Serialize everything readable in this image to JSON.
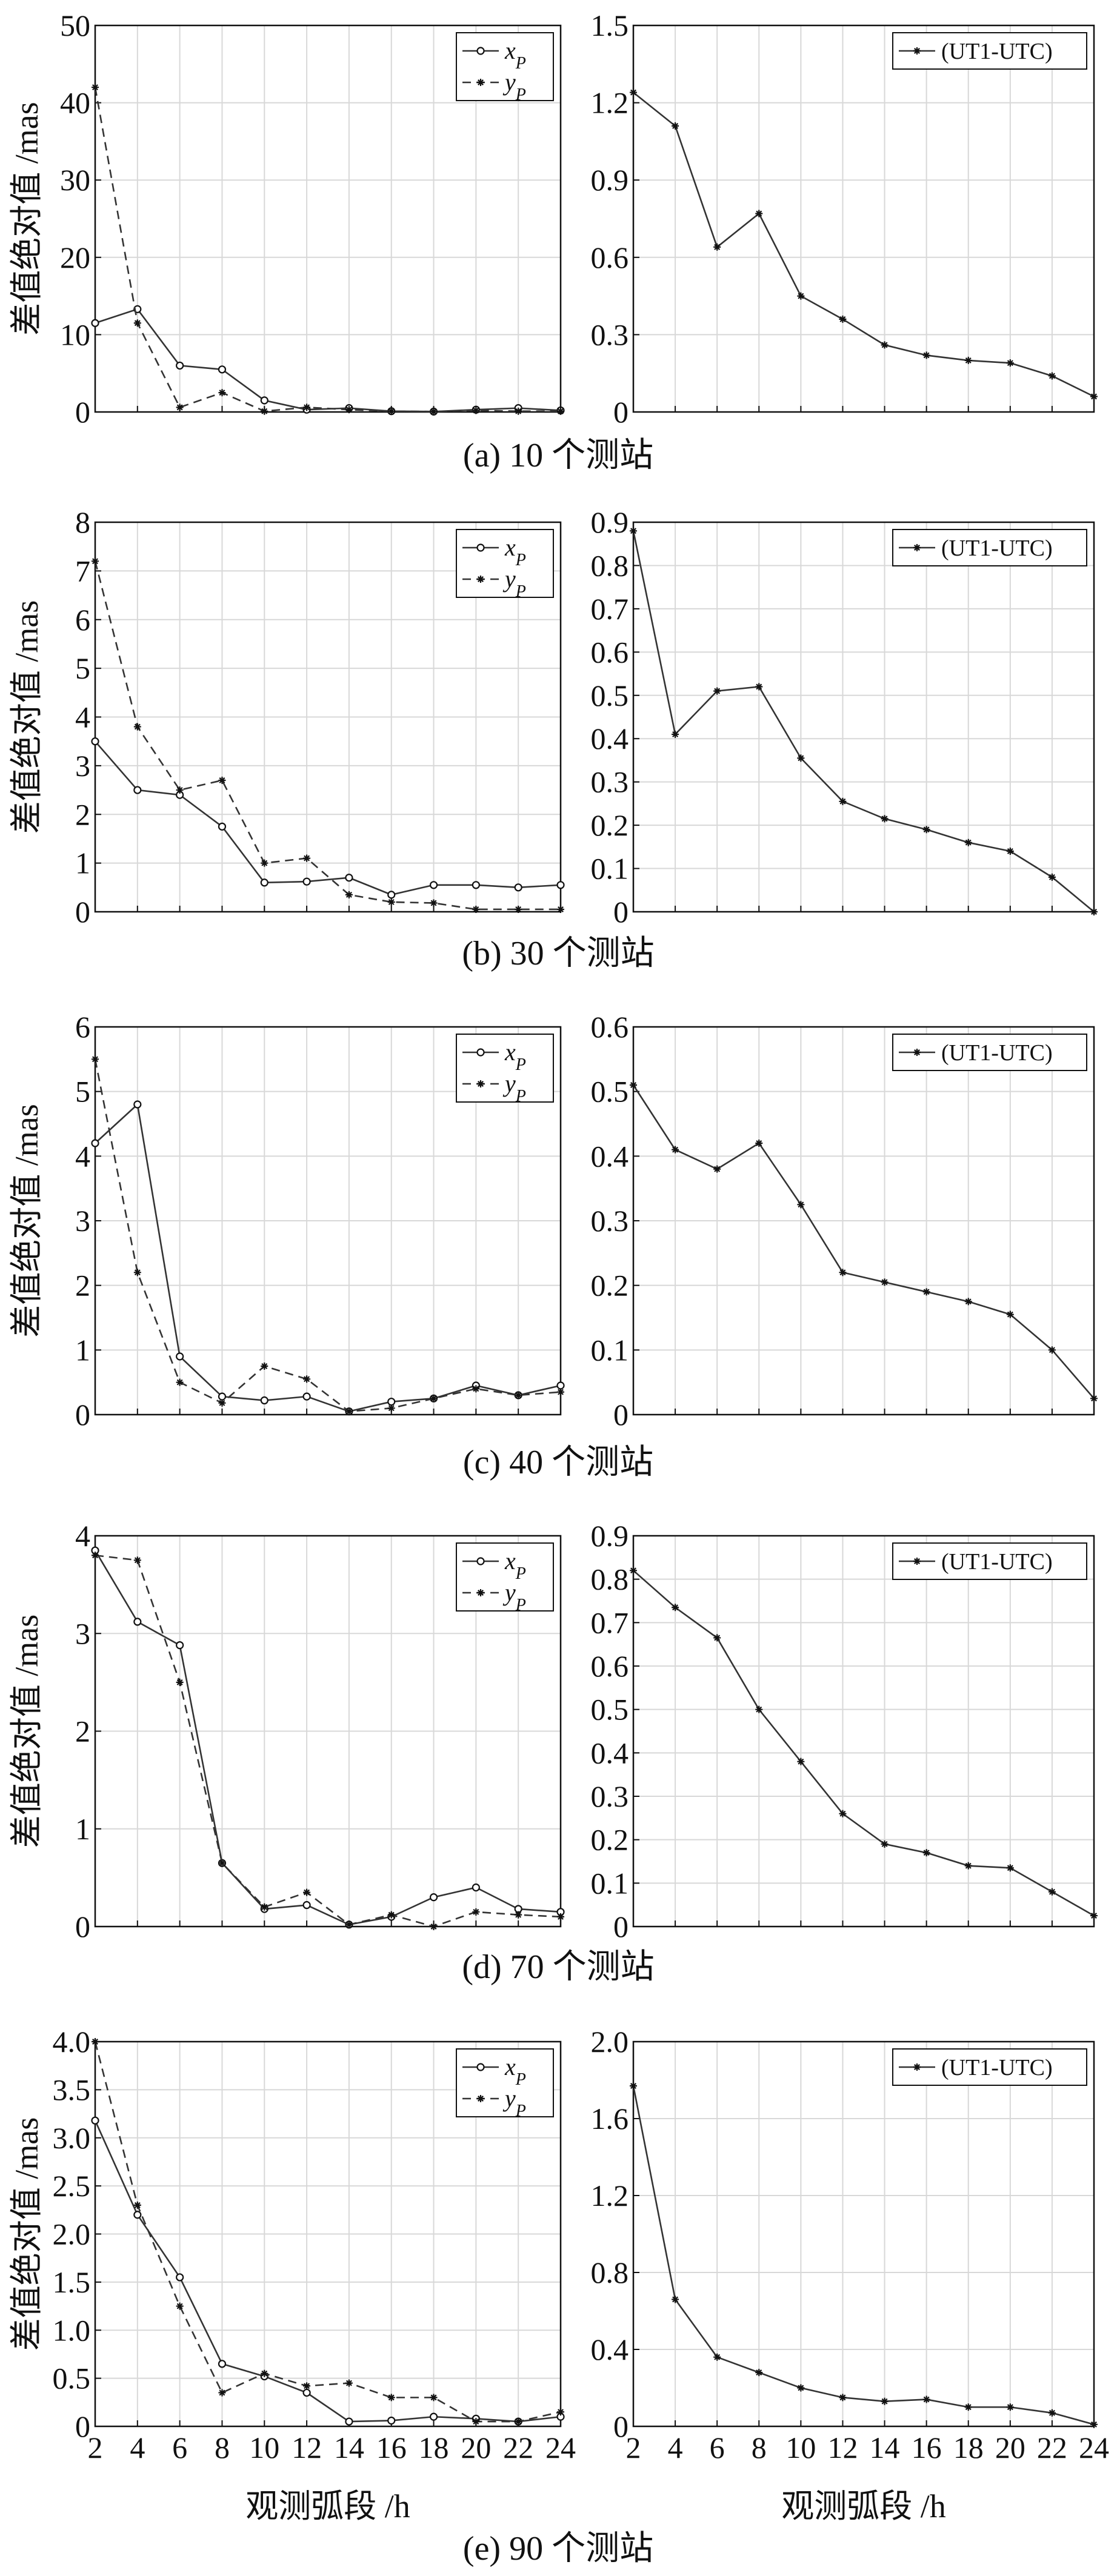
{
  "figure": {
    "common_ylabel": "差值绝对值 /mas",
    "common_xlabel": "观测弧段 /h",
    "x_ticks": [
      2,
      4,
      6,
      8,
      10,
      12,
      14,
      16,
      18,
      20,
      22,
      24
    ]
  },
  "chart_data": [
    {
      "type": "line",
      "panel": "a",
      "caption": "(a) 10 个测站",
      "ylabel": "差值绝对值 /mas",
      "xlabel": "",
      "x": [
        2,
        4,
        6,
        8,
        10,
        12,
        14,
        16,
        18,
        20,
        22,
        24
      ],
      "ylim": [
        0,
        50
      ],
      "yticks": [
        "0",
        "10",
        "20",
        "30",
        "40",
        "50"
      ],
      "series": [
        {
          "name": "x_P",
          "style": "solid",
          "marker": "circle",
          "values": [
            11.5,
            13.3,
            6.0,
            5.5,
            1.5,
            0.3,
            0.5,
            0.1,
            0.05,
            0.3,
            0.5,
            0.2
          ]
        },
        {
          "name": "y_P",
          "style": "dashed",
          "marker": "star",
          "values": [
            42.0,
            11.5,
            0.6,
            2.5,
            0.1,
            0.6,
            0.3,
            0.1,
            0.05,
            0.2,
            0.1,
            0.1
          ]
        }
      ]
    },
    {
      "type": "line",
      "panel": "a",
      "caption": "",
      "ylabel": "",
      "xlabel": "",
      "x": [
        2,
        4,
        6,
        8,
        10,
        12,
        14,
        16,
        18,
        20,
        22,
        24
      ],
      "ylim": [
        0,
        1.5
      ],
      "yticks": [
        "0",
        "0.3",
        "0.6",
        "0.9",
        "1.2",
        "1.5"
      ],
      "series": [
        {
          "name": "(UT1-UTC)",
          "style": "solid",
          "marker": "star",
          "values": [
            1.24,
            1.11,
            0.64,
            0.77,
            0.45,
            0.36,
            0.26,
            0.22,
            0.2,
            0.19,
            0.14,
            0.06
          ]
        }
      ]
    },
    {
      "type": "line",
      "panel": "b",
      "caption": "(b) 30 个测站",
      "ylabel": "差值绝对值 /mas",
      "xlabel": "",
      "x": [
        2,
        4,
        6,
        8,
        10,
        12,
        14,
        16,
        18,
        20,
        22,
        24
      ],
      "ylim": [
        0,
        8
      ],
      "yticks": [
        "0",
        "1",
        "2",
        "3",
        "4",
        "5",
        "6",
        "7",
        "8"
      ],
      "series": [
        {
          "name": "x_P",
          "style": "solid",
          "marker": "circle",
          "values": [
            3.5,
            2.5,
            2.4,
            1.75,
            0.6,
            0.62,
            0.7,
            0.35,
            0.55,
            0.55,
            0.5,
            0.55
          ]
        },
        {
          "name": "y_P",
          "style": "dashed",
          "marker": "star",
          "values": [
            7.2,
            3.8,
            2.5,
            2.7,
            1.0,
            1.1,
            0.35,
            0.2,
            0.18,
            0.05,
            0.05,
            0.05
          ]
        }
      ]
    },
    {
      "type": "line",
      "panel": "b",
      "caption": "",
      "ylabel": "",
      "xlabel": "",
      "x": [
        2,
        4,
        6,
        8,
        10,
        12,
        14,
        16,
        18,
        20,
        22,
        24
      ],
      "ylim": [
        0,
        0.9
      ],
      "yticks": [
        "0",
        "0.1",
        "0.2",
        "0.3",
        "0.4",
        "0.5",
        "0.6",
        "0.7",
        "0.8",
        "0.9"
      ],
      "series": [
        {
          "name": "(UT1-UTC)",
          "style": "solid",
          "marker": "star",
          "values": [
            0.88,
            0.41,
            0.51,
            0.52,
            0.355,
            0.255,
            0.215,
            0.19,
            0.16,
            0.14,
            0.08,
            0.0
          ]
        }
      ]
    },
    {
      "type": "line",
      "panel": "c",
      "caption": "(c) 40 个测站",
      "ylabel": "差值绝对值 /mas",
      "xlabel": "",
      "x": [
        2,
        4,
        6,
        8,
        10,
        12,
        14,
        16,
        18,
        20,
        22,
        24
      ],
      "ylim": [
        0,
        6
      ],
      "yticks": [
        "0",
        "1",
        "2",
        "3",
        "4",
        "5",
        "6"
      ],
      "series": [
        {
          "name": "x_P",
          "style": "solid",
          "marker": "circle",
          "values": [
            4.2,
            4.8,
            0.9,
            0.28,
            0.22,
            0.28,
            0.05,
            0.2,
            0.25,
            0.45,
            0.3,
            0.45
          ]
        },
        {
          "name": "y_P",
          "style": "dashed",
          "marker": "star",
          "values": [
            5.5,
            2.2,
            0.5,
            0.18,
            0.75,
            0.55,
            0.05,
            0.1,
            0.25,
            0.4,
            0.3,
            0.35
          ]
        }
      ]
    },
    {
      "type": "line",
      "panel": "c",
      "caption": "",
      "ylabel": "",
      "xlabel": "",
      "x": [
        2,
        4,
        6,
        8,
        10,
        12,
        14,
        16,
        18,
        20,
        22,
        24
      ],
      "ylim": [
        0,
        0.6
      ],
      "yticks": [
        "0",
        "0.1",
        "0.2",
        "0.3",
        "0.4",
        "0.5",
        "0.6"
      ],
      "series": [
        {
          "name": "(UT1-UTC)",
          "style": "solid",
          "marker": "star",
          "values": [
            0.51,
            0.41,
            0.38,
            0.42,
            0.325,
            0.22,
            0.205,
            0.19,
            0.175,
            0.155,
            0.1,
            0.025
          ]
        }
      ]
    },
    {
      "type": "line",
      "panel": "d",
      "caption": "(d) 70 个测站",
      "ylabel": "差值绝对值 /mas",
      "xlabel": "",
      "x": [
        2,
        4,
        6,
        8,
        10,
        12,
        14,
        16,
        18,
        20,
        22,
        24
      ],
      "ylim": [
        0,
        4
      ],
      "yticks": [
        "0",
        "1",
        "2",
        "3",
        "4"
      ],
      "series": [
        {
          "name": "x_P",
          "style": "solid",
          "marker": "circle",
          "values": [
            3.85,
            3.12,
            2.88,
            0.65,
            0.18,
            0.22,
            0.02,
            0.1,
            0.3,
            0.4,
            0.18,
            0.15
          ]
        },
        {
          "name": "y_P",
          "style": "dashed",
          "marker": "star",
          "values": [
            3.8,
            3.75,
            2.5,
            0.65,
            0.2,
            0.35,
            0.02,
            0.12,
            0.0,
            0.15,
            0.12,
            0.1
          ]
        }
      ]
    },
    {
      "type": "line",
      "panel": "d",
      "caption": "",
      "ylabel": "",
      "xlabel": "",
      "x": [
        2,
        4,
        6,
        8,
        10,
        12,
        14,
        16,
        18,
        20,
        22,
        24
      ],
      "ylim": [
        0,
        0.9
      ],
      "yticks": [
        "0",
        "0.1",
        "0.2",
        "0.3",
        "0.4",
        "0.5",
        "0.6",
        "0.7",
        "0.8",
        "0.9"
      ],
      "series": [
        {
          "name": "(UT1-UTC)",
          "style": "solid",
          "marker": "star",
          "values": [
            0.82,
            0.735,
            0.665,
            0.5,
            0.38,
            0.26,
            0.19,
            0.17,
            0.14,
            0.135,
            0.08,
            0.025
          ]
        }
      ]
    },
    {
      "type": "line",
      "panel": "e",
      "caption": "(e) 90 个测站",
      "ylabel": "差值绝对值 /mas",
      "xlabel": "观测弧段 /h",
      "x": [
        2,
        4,
        6,
        8,
        10,
        12,
        14,
        16,
        18,
        20,
        22,
        24
      ],
      "ylim": [
        0,
        4.0
      ],
      "yticks": [
        "0",
        "0.5",
        "1.0",
        "1.5",
        "2.0",
        "2.5",
        "3.0",
        "3.5",
        "4.0"
      ],
      "series": [
        {
          "name": "x_P",
          "style": "solid",
          "marker": "circle",
          "values": [
            3.18,
            2.2,
            1.55,
            0.65,
            0.52,
            0.35,
            0.05,
            0.06,
            0.1,
            0.08,
            0.05,
            0.1
          ]
        },
        {
          "name": "y_P",
          "style": "dashed",
          "marker": "star",
          "values": [
            4.0,
            2.3,
            1.25,
            0.35,
            0.55,
            0.42,
            0.45,
            0.3,
            0.3,
            0.05,
            0.05,
            0.15
          ]
        }
      ]
    },
    {
      "type": "line",
      "panel": "e",
      "caption": "",
      "ylabel": "",
      "xlabel": "观测弧段 /h",
      "x": [
        2,
        4,
        6,
        8,
        10,
        12,
        14,
        16,
        18,
        20,
        22,
        24
      ],
      "ylim": [
        0,
        2.0
      ],
      "yticks": [
        "0",
        "0.4",
        "0.8",
        "1.2",
        "1.6",
        "2.0"
      ],
      "series": [
        {
          "name": "(UT1-UTC)",
          "style": "solid",
          "marker": "star",
          "values": [
            1.77,
            0.66,
            0.36,
            0.28,
            0.2,
            0.15,
            0.13,
            0.14,
            0.1,
            0.1,
            0.07,
            0.01
          ]
        }
      ]
    }
  ]
}
